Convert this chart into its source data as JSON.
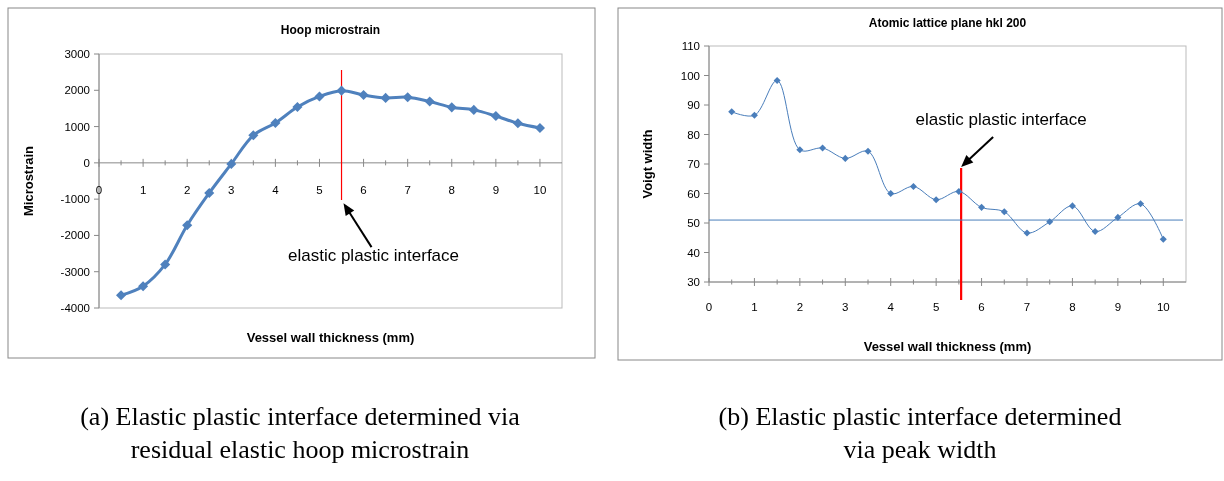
{
  "chart_data": [
    {
      "type": "line",
      "title": "Hoop microstrain",
      "xlabel": "Vessel wall thickness (mm)",
      "ylabel": "Microstrain",
      "x": [
        0.5,
        1,
        1.5,
        2,
        2.5,
        3,
        3.5,
        4,
        4.5,
        5,
        5.5,
        6,
        6.5,
        7,
        7.5,
        8,
        8.5,
        9,
        9.5,
        10
      ],
      "series": [
        {
          "color": "#4f81bd",
          "values": [
            -3650,
            -3400,
            -2800,
            -1720,
            -830,
            -30,
            760,
            1100,
            1540,
            1830,
            1990,
            1870,
            1790,
            1810,
            1690,
            1530,
            1460,
            1290,
            1090,
            960
          ]
        }
      ],
      "xlim": [
        0,
        10.5
      ],
      "xticks": [
        0,
        1,
        2,
        3,
        4,
        5,
        6,
        7,
        8,
        9,
        10
      ],
      "ylim": [
        -4000,
        3000
      ],
      "yticks": [
        -4000,
        -3000,
        -2000,
        -1000,
        0,
        1000,
        2000,
        3000
      ],
      "marker": "diamond",
      "grid": false,
      "ref_lines": [
        {
          "axis": "x",
          "value": 5.5,
          "color": "#ff0000"
        }
      ],
      "annotations": [
        {
          "text": "elastic plastic interface",
          "x": 5.5,
          "y": -1000
        },
        "(a) Elastic plastic interface determined via residual elastic hoop microstrain"
      ]
    },
    {
      "type": "line",
      "title": "Atomic lattice plane hkl 200",
      "xlabel": "Vessel wall thickness (mm)",
      "ylabel": "Voigt width",
      "x": [
        0.5,
        1,
        1.5,
        2,
        2.5,
        3,
        3.5,
        4,
        4.5,
        5,
        5.5,
        6,
        6.5,
        7,
        7.5,
        8,
        8.5,
        9,
        9.5,
        10
      ],
      "series": [
        {
          "color": "#4a7ebb",
          "values": [
            87.7,
            86.5,
            98.3,
            74.8,
            75.4,
            71.9,
            74.3,
            60.0,
            62.4,
            57.9,
            60.7,
            55.3,
            53.8,
            46.6,
            50.4,
            55.8,
            47.1,
            51.9,
            56.5,
            44.5
          ]
        }
      ],
      "xlim": [
        0,
        10.5
      ],
      "xticks": [
        0,
        1,
        2,
        3,
        4,
        5,
        6,
        7,
        8,
        9,
        10
      ],
      "ylim": [
        30,
        110
      ],
      "yticks": [
        30,
        40,
        50,
        60,
        70,
        80,
        90,
        100,
        110
      ],
      "marker": "diamond",
      "grid": false,
      "ref_lines": [
        {
          "axis": "x",
          "value": 5.55,
          "color": "#ff0000"
        },
        {
          "axis": "y",
          "value": 51,
          "color": "#4a7ebb"
        }
      ],
      "annotations": [
        {
          "text": "elastic plastic interface",
          "x": 5.55,
          "y": 69
        },
        "(b) Elastic plastic interface determined via peak width"
      ]
    }
  ]
}
